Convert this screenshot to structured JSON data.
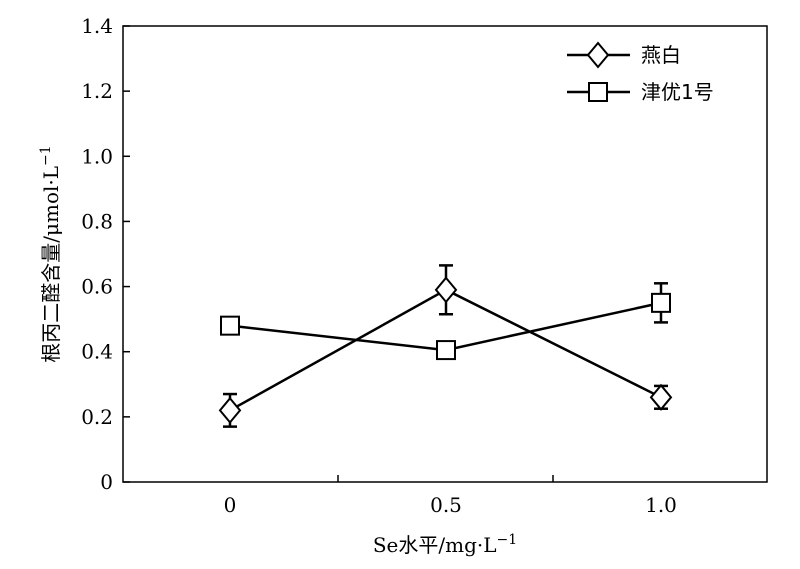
{
  "chart_data": {
    "type": "line",
    "xlabel_main": "Se水平/mg·L",
    "xlabel_sup": "−1",
    "ylabel_main": "根丙二醛含量/μmol·L",
    "ylabel_sup": "−1",
    "categories": [
      "0",
      "0.5",
      "1.0"
    ],
    "ylim": [
      0,
      1.4
    ],
    "yticks": [
      "0",
      "0.2",
      "0.4",
      "0.6",
      "0.8",
      "1.0",
      "1.2",
      "1.4"
    ],
    "grid": false,
    "legend_position": "top-right",
    "series": [
      {
        "name": "燕白",
        "marker": "diamond",
        "values": [
          0.22,
          0.59,
          0.26
        ],
        "errors": [
          0.05,
          0.075,
          0.035
        ]
      },
      {
        "name": "津优1号",
        "marker": "square",
        "values": [
          0.48,
          0.405,
          0.55
        ],
        "errors": [
          0.025,
          0.015,
          0.06
        ]
      }
    ]
  }
}
